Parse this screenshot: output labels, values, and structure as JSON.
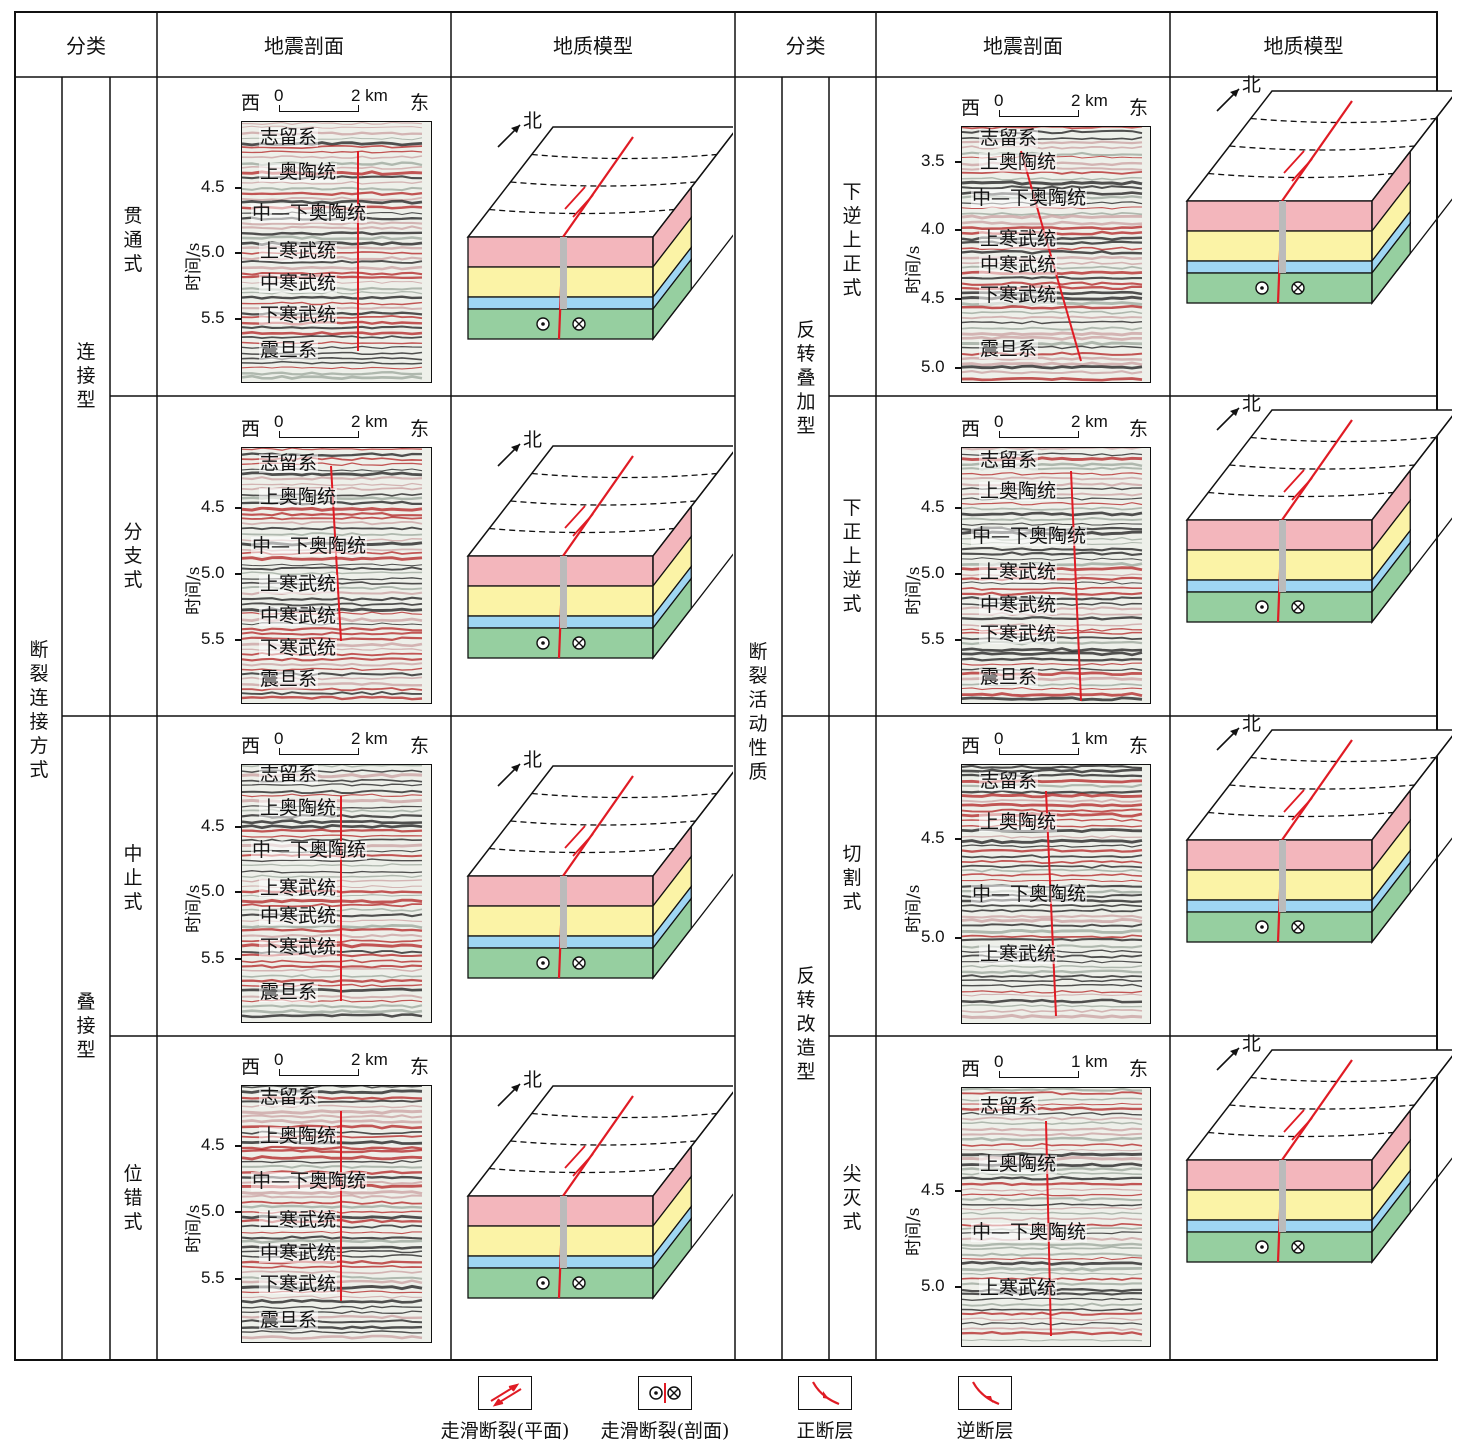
{
  "header": {
    "col_classify_left": "分类",
    "col_seismic_left": "地震剖面",
    "col_model_left": "地质模型",
    "col_classify_right": "分类",
    "col_seismic_right": "地震剖面",
    "col_model_right": "地质模型"
  },
  "left_category": {
    "main": "断裂连接方式",
    "sub1": "连接型",
    "sub2": "叠接型",
    "rows": [
      "贯通式",
      "分支式",
      "中止式",
      "位错式"
    ]
  },
  "right_category": {
    "main": "断裂活动性质",
    "sub1": "反转叠加型",
    "sub2": "反转改造型",
    "rows": [
      "下逆上正式",
      "下正上逆式",
      "切割式",
      "尖灭式"
    ]
  },
  "seismic": {
    "axis_label": "时间/s",
    "west": "西",
    "east": "东",
    "km": "km",
    "scale_zero": "0",
    "panels": [
      {
        "scale_end": "2",
        "ticks": [
          "4.5",
          "5.0",
          "5.5"
        ],
        "layers": [
          "志留系",
          "上奥陶统",
          "中—下奥陶统",
          "上寒武统",
          "中寒武统",
          "下寒武统",
          "震旦系"
        ]
      },
      {
        "scale_end": "2",
        "ticks": [
          "4.5",
          "5.0",
          "5.5"
        ],
        "layers": [
          "志留系",
          "上奥陶统",
          "中—下奥陶统",
          "上寒武统",
          "中寒武统",
          "下寒武统",
          "震旦系"
        ]
      },
      {
        "scale_end": "2",
        "ticks": [
          "4.5",
          "5.0",
          "5.5"
        ],
        "layers": [
          "志留系",
          "上奥陶统",
          "中—下奥陶统",
          "上寒武统",
          "中寒武统",
          "下寒武统",
          "震旦系"
        ]
      },
      {
        "scale_end": "2",
        "ticks": [
          "4.5",
          "5.0",
          "5.5"
        ],
        "layers": [
          "志留系",
          "上奥陶统",
          "中—下奥陶统",
          "上寒武统",
          "中寒武统",
          "下寒武统",
          "震旦系"
        ]
      },
      {
        "scale_end": "2",
        "ticks": [
          "3.5",
          "4.0",
          "4.5",
          "5.0"
        ],
        "layers": [
          "志留系",
          "上奥陶统",
          "中—下奥陶统",
          "上寒武统",
          "中寒武统",
          "下寒武统",
          "震旦系"
        ]
      },
      {
        "scale_end": "2",
        "ticks": [
          "4.5",
          "5.0",
          "5.5"
        ],
        "layers": [
          "志留系",
          "上奥陶统",
          "中—下奥陶统",
          "上寒武统",
          "中寒武统",
          "下寒武统",
          "震旦系"
        ]
      },
      {
        "scale_end": "1",
        "ticks": [
          "4.5",
          "5.0"
        ],
        "layers": [
          "志留系",
          "上奥陶统",
          "中—下奥陶统",
          "上寒武统"
        ]
      },
      {
        "scale_end": "1",
        "ticks": [
          "4.5",
          "5.0"
        ],
        "layers": [
          "志留系",
          "上奥陶统",
          "中—下奥陶统",
          "上寒武统"
        ]
      }
    ]
  },
  "model": {
    "north": "北",
    "colors": {
      "pink": "#f3b6bc",
      "yellow": "#fbf3a6",
      "blue": "#9fd6f3",
      "green": "#96cfa0",
      "fault": "#e01b24"
    }
  },
  "legend": [
    {
      "label": "走滑断裂(平面)",
      "icon": "strike-slip-plan-icon"
    },
    {
      "label": "走滑断裂(剖面)",
      "icon": "strike-slip-section-icon"
    },
    {
      "label": "正断层",
      "icon": "normal-fault-icon"
    },
    {
      "label": "逆断层",
      "icon": "reverse-fault-icon"
    }
  ]
}
